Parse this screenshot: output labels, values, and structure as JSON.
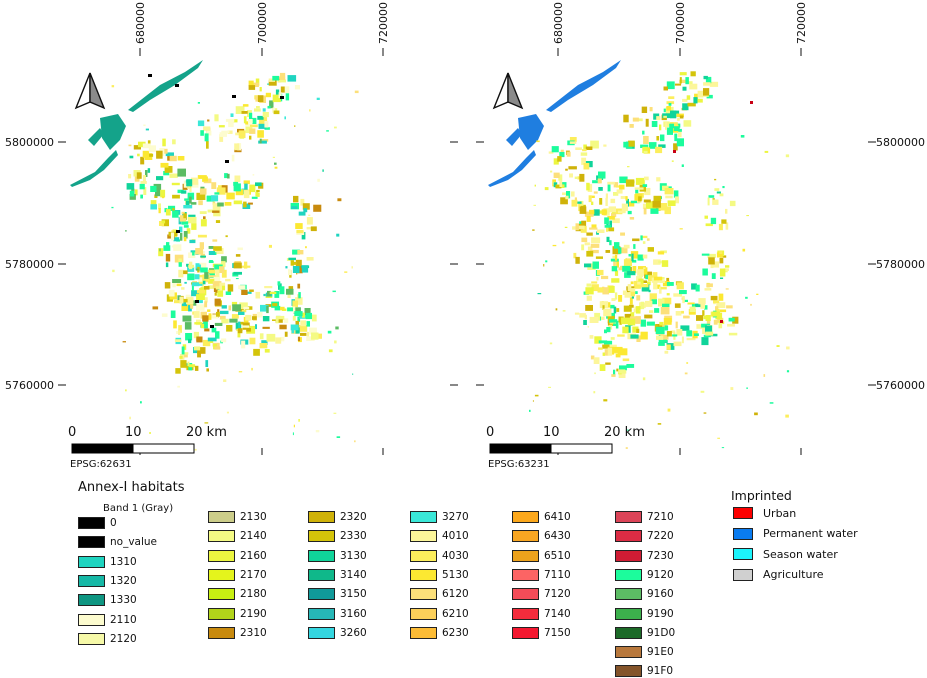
{
  "maps": [
    {
      "epsg": "EPSG:62631",
      "scale_labels": [
        "0",
        "10",
        "20 km"
      ],
      "x_ticks": [
        "680000",
        "700000",
        "720000"
      ],
      "y_ticks": [
        "5800000",
        "5780000",
        "5760000"
      ],
      "water_color": "#14a38a"
    },
    {
      "epsg": "EPSG:63231",
      "scale_labels": [
        "0",
        "10",
        "20 km"
      ],
      "x_ticks": [
        "680000",
        "700000",
        "720000"
      ],
      "y_ticks": [
        "5800000",
        "5780000",
        "5760000"
      ],
      "water_color": "#1f7ee0"
    }
  ],
  "annex_legend": {
    "title": "Annex-I habitats",
    "band_label": "Band 1 (Gray)",
    "columns": [
      [
        {
          "label": "0",
          "color": "#000000"
        },
        {
          "label": "no_value",
          "color": "#000000"
        },
        {
          "label": "1310",
          "color": "#1fd4c0"
        },
        {
          "label": "1320",
          "color": "#16b8a6"
        },
        {
          "label": "1330",
          "color": "#0f9682"
        },
        {
          "label": "2110",
          "color": "#fdfccf"
        },
        {
          "label": "2120",
          "color": "#f6f9a8"
        }
      ],
      [
        {
          "label": "2130",
          "color": "#cccd8a"
        },
        {
          "label": "2140",
          "color": "#f4fa84"
        },
        {
          "label": "2160",
          "color": "#ecf640"
        },
        {
          "label": "2170",
          "color": "#e4f41c"
        },
        {
          "label": "2180",
          "color": "#c8f012"
        },
        {
          "label": "2190",
          "color": "#b2d41a"
        },
        {
          "label": "2310",
          "color": "#c88a0e"
        }
      ],
      [
        {
          "label": "2320",
          "color": "#cfb209"
        },
        {
          "label": "2330",
          "color": "#d4c40a"
        },
        {
          "label": "3130",
          "color": "#10d49a"
        },
        {
          "label": "3140",
          "color": "#0fb88a"
        },
        {
          "label": "3150",
          "color": "#109a9a"
        },
        {
          "label": "3160",
          "color": "#26b8b8"
        },
        {
          "label": "3260",
          "color": "#34d6e0"
        }
      ],
      [
        {
          "label": "3270",
          "color": "#3ae8d8"
        },
        {
          "label": "4010",
          "color": "#fcf69a"
        },
        {
          "label": "4030",
          "color": "#fcee5c"
        },
        {
          "label": "5130",
          "color": "#fce832"
        },
        {
          "label": "6120",
          "color": "#fce07a"
        },
        {
          "label": "6210",
          "color": "#fcd05a"
        },
        {
          "label": "6230",
          "color": "#fcbc36"
        }
      ],
      [
        {
          "label": "6410",
          "color": "#fca81c"
        },
        {
          "label": "6430",
          "color": "#f8a622"
        },
        {
          "label": "6510",
          "color": "#eca21c"
        },
        {
          "label": "7110",
          "color": "#fc6464"
        },
        {
          "label": "7120",
          "color": "#f44c58"
        },
        {
          "label": "7140",
          "color": "#f42c3c"
        },
        {
          "label": "7150",
          "color": "#f41830"
        }
      ],
      [
        {
          "label": "7210",
          "color": "#dc4458"
        },
        {
          "label": "7220",
          "color": "#dc2c44"
        },
        {
          "label": "7230",
          "color": "#d01c34"
        },
        {
          "label": "9120",
          "color": "#1cfc9c"
        },
        {
          "label": "9160",
          "color": "#5cbc64"
        },
        {
          "label": "9190",
          "color": "#3cb04c"
        },
        {
          "label": "91D0",
          "color": "#1c6a28"
        },
        {
          "label": "91E0",
          "color": "#b8783c"
        },
        {
          "label": "91F0",
          "color": "#84542a"
        }
      ]
    ]
  },
  "imprinted_legend": {
    "title": "Imprinted",
    "items": [
      {
        "label": "Urban",
        "color": "#fc0000"
      },
      {
        "label": "Permanent water",
        "color": "#0a7cf0"
      },
      {
        "label": "Season water",
        "color": "#1cf4fc"
      },
      {
        "label": "Agriculture",
        "color": "#d0d0d0"
      }
    ]
  }
}
